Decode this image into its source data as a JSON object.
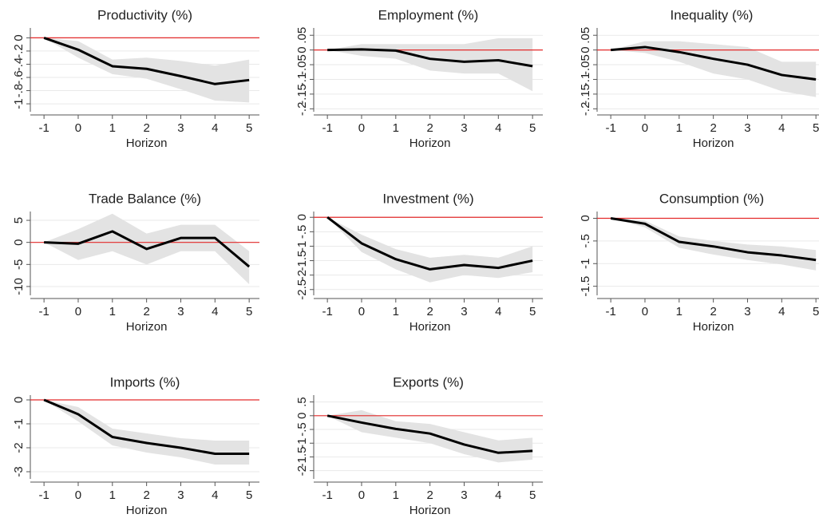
{
  "chart_data": [
    {
      "type": "line",
      "title": "Productivity (%)",
      "xlabel": "Horizon",
      "x": [
        -1,
        0,
        1,
        2,
        3,
        4,
        5
      ],
      "xlim": [
        -1.4,
        5.3
      ],
      "xticks": [
        -1,
        0,
        1,
        2,
        3,
        4,
        5
      ],
      "ylim": [
        -1.12,
        0.15
      ],
      "yticks": [
        -1,
        {
          "value": -0.8,
          "label": "-.8"
        },
        {
          "value": -0.6,
          "label": "-.6"
        },
        {
          "value": -0.4,
          "label": "-.4"
        },
        {
          "value": -0.2,
          "label": "-.2"
        },
        0
      ],
      "grid": true,
      "reference_line": 0,
      "reference_color": "#e32b2b",
      "band_color": "#e3e3e3",
      "color": "#000000",
      "values": [
        0,
        -0.18,
        -0.43,
        -0.47,
        -0.58,
        -0.7,
        -0.64
      ],
      "band_lower": [
        0,
        -0.3,
        -0.55,
        -0.62,
        -0.78,
        -0.95,
        -0.98
      ],
      "band_upper": [
        0,
        -0.05,
        -0.33,
        -0.3,
        -0.35,
        -0.42,
        -0.33
      ]
    },
    {
      "type": "line",
      "title": "Employment (%)",
      "xlabel": "Horizon",
      "x": [
        -1,
        0,
        1,
        2,
        3,
        4,
        5
      ],
      "xlim": [
        -1.4,
        5.3
      ],
      "xticks": [
        -1,
        0,
        1,
        2,
        3,
        4,
        5
      ],
      "ylim": [
        -0.21,
        0.075
      ],
      "yticks": [
        {
          "value": -0.2,
          "label": "-.2"
        },
        {
          "value": -0.15,
          "label": "-.15"
        },
        {
          "value": -0.1,
          "label": "-.1"
        },
        {
          "value": -0.05,
          "label": "-.05"
        },
        0,
        {
          "value": 0.05,
          "label": ".05"
        }
      ],
      "grid": true,
      "reference_line": 0,
      "reference_color": "#e32b2b",
      "band_color": "#e3e3e3",
      "color": "#000000",
      "values": [
        0,
        0.002,
        -0.002,
        -0.03,
        -0.04,
        -0.035,
        -0.055
      ],
      "band_lower": [
        0,
        -0.02,
        -0.03,
        -0.07,
        -0.08,
        -0.08,
        -0.14
      ],
      "band_upper": [
        0,
        0.02,
        0.02,
        0.02,
        0.02,
        0.04,
        0.04
      ]
    },
    {
      "type": "line",
      "title": "Inequality (%)",
      "xlabel": "Horizon",
      "x": [
        -1,
        0,
        1,
        2,
        3,
        4,
        5
      ],
      "xlim": [
        -1.4,
        5.3
      ],
      "xticks": [
        -1,
        0,
        1,
        2,
        3,
        4,
        5
      ],
      "ylim": [
        -0.21,
        0.075
      ],
      "yticks": [
        {
          "value": -0.2,
          "label": "-.2"
        },
        {
          "value": -0.15,
          "label": "-.15"
        },
        {
          "value": -0.1,
          "label": "-.1"
        },
        {
          "value": -0.05,
          "label": "-.05"
        },
        0,
        {
          "value": 0.05,
          "label": ".05"
        }
      ],
      "grid": true,
      "reference_line": 0,
      "reference_color": "#e32b2b",
      "band_color": "#e3e3e3",
      "color": "#000000",
      "values": [
        0,
        0.01,
        -0.007,
        -0.03,
        -0.05,
        -0.085,
        -0.1
      ],
      "band_lower": [
        0,
        -0.01,
        -0.04,
        -0.08,
        -0.1,
        -0.14,
        -0.16
      ],
      "band_upper": [
        0,
        0.03,
        0.03,
        0.02,
        0.01,
        -0.04,
        -0.04
      ]
    },
    {
      "type": "line",
      "title": "Trade Balance (%)",
      "xlabel": "Horizon",
      "x": [
        -1,
        0,
        1,
        2,
        3,
        4,
        5
      ],
      "xlim": [
        -1.4,
        5.3
      ],
      "xticks": [
        -1,
        0,
        1,
        2,
        3,
        4,
        5
      ],
      "ylim": [
        -12,
        7
      ],
      "yticks": [
        -10,
        -5,
        0,
        5
      ],
      "grid": true,
      "reference_line": 0,
      "reference_color": "#e32b2b",
      "band_color": "#e3e3e3",
      "color": "#000000",
      "values": [
        0,
        -0.3,
        2.5,
        -1.5,
        1,
        1,
        -5.5
      ],
      "band_lower": [
        0,
        -4,
        -2,
        -5,
        -2,
        -2,
        -9.5
      ],
      "band_upper": [
        0,
        3,
        6.5,
        2,
        4,
        4,
        -2
      ]
    },
    {
      "type": "line",
      "title": "Investment (%)",
      "xlabel": "Horizon",
      "x": [
        -1,
        0,
        1,
        2,
        3,
        4,
        5
      ],
      "xlim": [
        -1.4,
        5.3
      ],
      "xticks": [
        -1,
        0,
        1,
        2,
        3,
        4,
        5
      ],
      "ylim": [
        -2.7,
        0.2
      ],
      "yticks": [
        -2.5,
        -2,
        -1.5,
        -1,
        {
          "value": -0.5,
          "label": "-.5"
        },
        0
      ],
      "grid": true,
      "reference_line": 0,
      "reference_color": "#e32b2b",
      "band_color": "#e3e3e3",
      "color": "#000000",
      "values": [
        0,
        -0.9,
        -1.45,
        -1.8,
        -1.65,
        -1.75,
        -1.5
      ],
      "band_lower": [
        0,
        -1.2,
        -1.8,
        -2.25,
        -2.0,
        -2.1,
        -1.9
      ],
      "band_upper": [
        0,
        -0.6,
        -1.1,
        -1.4,
        -1.3,
        -1.4,
        -1.0
      ]
    },
    {
      "type": "line",
      "title": "Consumption (%)",
      "xlabel": "Horizon",
      "x": [
        -1,
        0,
        1,
        2,
        3,
        4,
        5
      ],
      "xlim": [
        -1.4,
        5.3
      ],
      "xticks": [
        -1,
        0,
        1,
        2,
        3,
        4,
        5
      ],
      "ylim": [
        -1.7,
        0.15
      ],
      "yticks": [
        -1.5,
        -1,
        {
          "value": -0.5,
          "label": "-.5"
        },
        0
      ],
      "grid": true,
      "reference_line": 0,
      "reference_color": "#e32b2b",
      "band_color": "#e3e3e3",
      "color": "#000000",
      "values": [
        0,
        -0.12,
        -0.52,
        -0.62,
        -0.75,
        -0.82,
        -0.92
      ],
      "band_lower": [
        0,
        -0.2,
        -0.65,
        -0.8,
        -0.92,
        -1.02,
        -1.15
      ],
      "band_upper": [
        0,
        -0.05,
        -0.4,
        -0.5,
        -0.58,
        -0.62,
        -0.7
      ]
    },
    {
      "type": "line",
      "title": "Imports (%)",
      "xlabel": "Horizon",
      "x": [
        -1,
        0,
        1,
        2,
        3,
        4,
        5
      ],
      "xlim": [
        -1.4,
        5.3
      ],
      "xticks": [
        -1,
        0,
        1,
        2,
        3,
        4,
        5
      ],
      "ylim": [
        -3.3,
        0.2
      ],
      "yticks": [
        -3,
        -2,
        -1,
        0
      ],
      "grid": true,
      "reference_line": 0,
      "reference_color": "#e32b2b",
      "band_color": "#e3e3e3",
      "color": "#000000",
      "values": [
        0,
        -0.6,
        -1.55,
        -1.8,
        -2.0,
        -2.25,
        -2.25
      ],
      "band_lower": [
        0,
        -0.9,
        -1.9,
        -2.2,
        -2.4,
        -2.7,
        -2.7
      ],
      "band_upper": [
        0,
        -0.3,
        -1.2,
        -1.4,
        -1.6,
        -1.7,
        -1.7
      ]
    },
    {
      "type": "line",
      "title": "Exports (%)",
      "xlabel": "Horizon",
      "x": [
        -1,
        0,
        1,
        2,
        3,
        4,
        5
      ],
      "xlim": [
        -1.4,
        5.3
      ],
      "xticks": [
        -1,
        0,
        1,
        2,
        3,
        4,
        5
      ],
      "ylim": [
        -2.3,
        0.75
      ],
      "yticks": [
        -2,
        -1.5,
        -1,
        {
          "value": -0.5,
          "label": "-.5"
        },
        0,
        {
          "value": 0.5,
          "label": ".5"
        }
      ],
      "grid": true,
      "reference_line": 0,
      "reference_color": "#e32b2b",
      "band_color": "#e3e3e3",
      "color": "#000000",
      "values": [
        0,
        -0.25,
        -0.48,
        -0.65,
        -1.05,
        -1.35,
        -1.28
      ],
      "band_lower": [
        0,
        -0.6,
        -0.8,
        -1.0,
        -1.4,
        -1.7,
        -1.6
      ],
      "band_upper": [
        0,
        0.2,
        -0.2,
        -0.3,
        -0.6,
        -0.9,
        -0.8
      ]
    }
  ]
}
